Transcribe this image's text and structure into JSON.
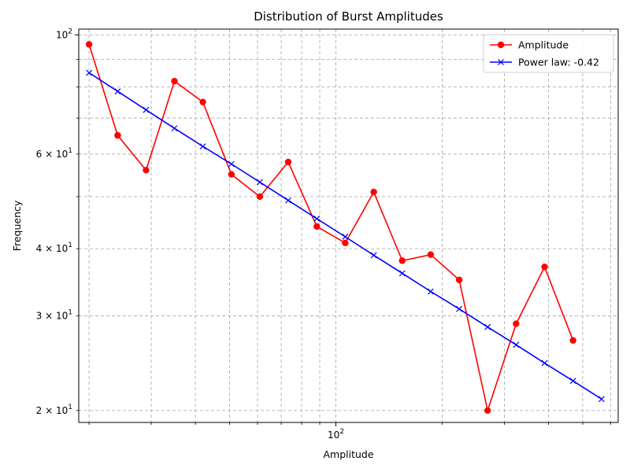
{
  "chart_data": {
    "type": "line",
    "title": "Distribution of Burst Amplitudes",
    "xlabel": "Amplitude",
    "ylabel": "Frequency",
    "xscale": "log",
    "yscale": "log",
    "xlim": [
      18.7,
      630
    ],
    "ylim": [
      19.0,
      102.5
    ],
    "grid": true,
    "legend_position": "top-right",
    "x_major_ticks": [
      {
        "value": 100,
        "label": "10^2"
      }
    ],
    "x_minor_ticks": [
      20,
      30,
      40,
      50,
      60,
      70,
      80,
      90,
      200,
      300,
      400,
      500,
      600
    ],
    "y_major_ticks": [
      {
        "value": 100,
        "label": "10^2"
      }
    ],
    "y_minor_ticks": [
      {
        "value": 20,
        "label": "2 × 10^1"
      },
      {
        "value": 30,
        "label": "3 × 10^1"
      },
      {
        "value": 40,
        "label": "4 × 10^1"
      },
      {
        "value": 50,
        "label": ""
      },
      {
        "value": 60,
        "label": "6 × 10^1"
      },
      {
        "value": 70,
        "label": ""
      },
      {
        "value": 80,
        "label": ""
      },
      {
        "value": 90,
        "label": ""
      }
    ],
    "series": [
      {
        "name": "Amplitude",
        "color": "#ff0000",
        "marker": "circle",
        "x": [
          20.0,
          24.1,
          29.0,
          34.9,
          42.0,
          50.6,
          60.9,
          73.3,
          88.3,
          106.3,
          128.0,
          154.1,
          185.5,
          223.4,
          268.9,
          323.8,
          389.9,
          469.4
        ],
        "y": [
          96,
          65,
          56,
          82,
          75,
          55,
          50,
          58,
          44,
          41,
          51,
          38,
          39,
          35,
          20,
          29,
          37,
          27
        ]
      },
      {
        "name": "Power law: -0.42",
        "color": "#0000ff",
        "marker": "x",
        "x": [
          20.0,
          24.1,
          29.0,
          34.9,
          42.0,
          50.6,
          60.9,
          73.3,
          88.3,
          106.3,
          128.0,
          154.1,
          185.5,
          223.4,
          268.9,
          323.8,
          389.9,
          469.4,
          565.3
        ],
        "y": [
          85.0,
          78.5,
          72.5,
          67.0,
          62.0,
          57.5,
          53.2,
          49.2,
          45.5,
          42.1,
          38.9,
          36.0,
          33.3,
          30.9,
          28.6,
          26.5,
          24.5,
          22.7,
          21.0
        ]
      }
    ]
  }
}
